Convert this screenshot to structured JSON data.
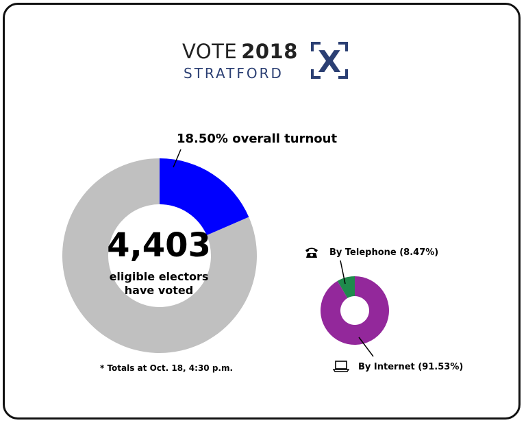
{
  "logo": {
    "vote": "VOTE",
    "year": "2018",
    "city": "STRATFORD",
    "mark": "X",
    "colors": {
      "navy": "#2b3f73",
      "box": "#2b3f73"
    }
  },
  "turnout_label": "18.50% overall turnout",
  "total_voted": "4,403",
  "total_voted_line1": "eligible electors",
  "total_voted_line2": "have voted",
  "footnote": "* Totals at Oct. 18, 4:30 p.m.",
  "legend": {
    "telephone_label": "By Telephone (8.47%)",
    "internet_label": "By Internet (91.53%)",
    "telephone_icon": "telephone-icon",
    "internet_icon": "laptop-icon"
  },
  "chart_data": [
    {
      "type": "pie",
      "donut": true,
      "labels": [
        "overall turnout",
        ""
      ],
      "values": [
        18.5,
        81.5
      ],
      "colors": [
        "#0000ff",
        "#c0c0c0"
      ],
      "title": "",
      "annotation": "18.50% overall turnout"
    },
    {
      "type": "pie",
      "donut": true,
      "labels": [
        "By Telephone",
        "By Internet"
      ],
      "values": [
        8.47,
        91.53
      ],
      "colors": [
        "#1f8a4c",
        "#93289b"
      ],
      "title": ""
    }
  ]
}
